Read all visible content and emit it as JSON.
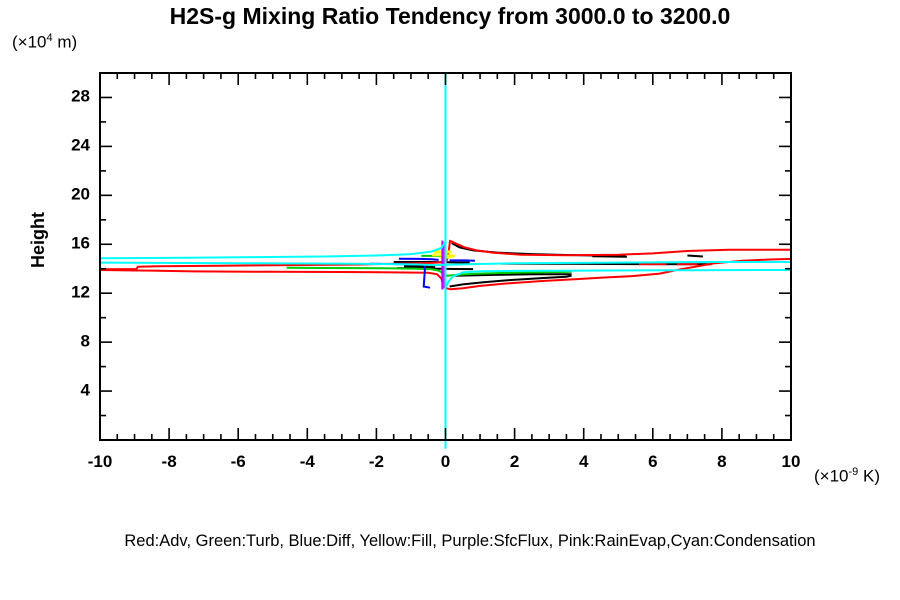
{
  "title": "H2S-g Mixing Ratio Tendency from 3000.0 to 3200.0",
  "y_axis": {
    "label": "Height",
    "unit_prefix": "(×10",
    "unit_sup": "4",
    "unit_suffix": " m)",
    "range": [
      0,
      30
    ],
    "major_ticks": [
      4,
      8,
      12,
      16,
      20,
      24,
      28
    ],
    "minor_step": 2
  },
  "x_axis": {
    "unit_prefix": "(×10",
    "unit_sup": "-9",
    "unit_suffix": " K)",
    "range": [
      -10,
      10
    ],
    "major_ticks": [
      -10,
      -8,
      -6,
      -4,
      -2,
      0,
      2,
      4,
      6,
      8,
      10
    ],
    "minor_step": 0.5
  },
  "legend": "Red:Adv, Green:Turb, Blue:Diff, Yellow:Fill, Purple:SfcFlux, Pink:RainEvap,Cyan:Condensation",
  "colors": {
    "frame": "#000000",
    "red": "#ff0000",
    "green": "#00cc00",
    "blue": "#0000ff",
    "yellow": "#ffff00",
    "purple": "#aa00ff",
    "pink": "#ff00ff",
    "cyan": "#00ffff",
    "black": "#000000"
  },
  "chart_data": {
    "type": "line",
    "title": "H2S-g Mixing Ratio Tendency from 3000.0 to 3200.0",
    "xlabel": "(×10^-9 K)",
    "ylabel": "Height (×10^4 m)",
    "xlim": [
      -10,
      10
    ],
    "ylim": [
      0,
      30
    ],
    "grid": false,
    "legend_position": "bottom-text-line",
    "series": [
      {
        "name": "unlabeled-black",
        "color_key": "black",
        "width": 2,
        "segments": [
          [
            [
              0.18,
              16.1
            ],
            [
              0.4,
              15.75
            ],
            [
              0.8,
              15.5
            ],
            [
              1.5,
              15.32
            ],
            [
              2.5,
              15.2
            ],
            [
              3.5,
              15.12
            ],
            [
              4.3,
              15.08
            ],
            [
              5.2,
              15.0
            ]
          ],
          [
            [
              4.25,
              15.02
            ],
            [
              5.25,
              14.98
            ]
          ],
          [
            [
              7.0,
              15.08
            ],
            [
              7.45,
              15.0
            ]
          ],
          [
            [
              1.6,
              14.42
            ],
            [
              3.5,
              14.4
            ],
            [
              5.5,
              14.38
            ],
            [
              7.7,
              14.36
            ]
          ],
          [
            [
              -1.5,
              14.55
            ],
            [
              -0.5,
              14.55
            ],
            [
              0.3,
              14.52
            ],
            [
              0.7,
              14.5
            ]
          ],
          [
            [
              -1.2,
              14.25
            ],
            [
              -0.3,
              14.22
            ]
          ],
          [
            [
              -1.2,
              14.15
            ],
            [
              -0.3,
              14.12
            ]
          ],
          [
            [
              -1.4,
              14.05
            ],
            [
              -0.6,
              14.03
            ],
            [
              -0.2,
              14.0
            ],
            [
              0.3,
              13.98
            ],
            [
              0.8,
              13.97
            ]
          ],
          [
            [
              0.12,
              12.55
            ],
            [
              0.5,
              12.72
            ],
            [
              1.1,
              12.9
            ],
            [
              1.9,
              13.08
            ],
            [
              2.9,
              13.25
            ],
            [
              3.5,
              13.35
            ],
            [
              3.62,
              13.42
            ],
            [
              3.62,
              13.55
            ],
            [
              2.6,
              13.55
            ],
            [
              1.4,
              13.5
            ],
            [
              0.6,
              13.45
            ],
            [
              0.2,
              13.42
            ]
          ]
        ]
      },
      {
        "name": "Adv",
        "color_key": "red",
        "width": 2,
        "segments": [
          [
            [
              10,
              15.55
            ],
            [
              8.2,
              15.55
            ],
            [
              7,
              15.45
            ],
            [
              6,
              15.25
            ],
            [
              5,
              15.15
            ],
            [
              3.5,
              15.1
            ],
            [
              2.2,
              15.15
            ],
            [
              1.4,
              15.3
            ],
            [
              0.9,
              15.5
            ],
            [
              0.55,
              15.75
            ],
            [
              0.35,
              16.0
            ],
            [
              0.2,
              16.2
            ],
            [
              0.13,
              16.27
            ],
            [
              0.1,
              15.6
            ],
            [
              0.06,
              14.9
            ],
            [
              0.02,
              14.55
            ],
            [
              -0.4,
              14.48
            ],
            [
              -1.2,
              14.42
            ],
            [
              -2.5,
              14.35
            ],
            [
              -4.5,
              14.3
            ],
            [
              -6.5,
              14.25
            ],
            [
              -8.3,
              14.2
            ],
            [
              -8.9,
              14.17
            ],
            [
              -8.95,
              13.97
            ],
            [
              -10,
              13.95
            ]
          ],
          [
            [
              -10,
              13.9
            ],
            [
              -8.5,
              13.85
            ],
            [
              -7.3,
              13.78
            ],
            [
              -5,
              13.75
            ],
            [
              -3,
              13.73
            ],
            [
              -1.5,
              13.7
            ],
            [
              -0.5,
              13.67
            ],
            [
              -0.25,
              13.55
            ],
            [
              -0.12,
              13.2
            ],
            [
              -0.05,
              12.7
            ],
            [
              0.02,
              12.4
            ],
            [
              0.15,
              12.32
            ],
            [
              0.5,
              12.4
            ],
            [
              1,
              12.6
            ],
            [
              1.8,
              12.8
            ],
            [
              2.8,
              13.0
            ],
            [
              3.8,
              13.15
            ],
            [
              4.6,
              13.28
            ],
            [
              5.4,
              13.4
            ],
            [
              6.2,
              13.6
            ],
            [
              6.8,
              13.95
            ],
            [
              7.3,
              14.2
            ],
            [
              7.8,
              14.45
            ],
            [
              8.6,
              14.65
            ],
            [
              9.3,
              14.75
            ],
            [
              10,
              14.8
            ]
          ],
          [
            [
              5.6,
              14.38
            ],
            [
              6.4,
              14.38
            ]
          ],
          [
            [
              6.7,
              14.36
            ],
            [
              7.3,
              14.36
            ]
          ]
        ]
      },
      {
        "name": "Turb",
        "color_key": "green",
        "width": 2,
        "segments": [
          [
            [
              -4.6,
              14.08
            ],
            [
              -3.5,
              14.06
            ],
            [
              -2.5,
              14.05
            ],
            [
              -1.5,
              14.03
            ],
            [
              -0.8,
              14.0
            ],
            [
              -0.4,
              13.95
            ],
            [
              -0.2,
              13.85
            ],
            [
              -0.05,
              13.6
            ],
            [
              0.05,
              13.42
            ],
            [
              0.3,
              13.5
            ],
            [
              0.8,
              13.58
            ],
            [
              1.6,
              13.65
            ],
            [
              2.6,
              13.7
            ],
            [
              3.3,
              13.73
            ],
            [
              3.65,
              13.75
            ]
          ],
          [
            [
              -0.7,
              15.05
            ],
            [
              -0.3,
              15.05
            ],
            [
              0,
              15.0
            ],
            [
              0.25,
              15.03
            ]
          ]
        ]
      },
      {
        "name": "Diff",
        "color_key": "blue",
        "width": 2,
        "segments": [
          [
            [
              -1.35,
              14.82
            ],
            [
              -0.75,
              14.8
            ],
            [
              -0.4,
              14.78
            ],
            [
              -0.2,
              14.72
            ]
          ],
          [
            [
              0.12,
              14.68
            ],
            [
              0.55,
              14.68
            ],
            [
              0.85,
              14.65
            ]
          ],
          [
            [
              -2.2,
              14.4
            ],
            [
              -1.4,
              14.38
            ],
            [
              -0.75,
              14.35
            ]
          ],
          [
            [
              -0.6,
              14.42
            ],
            [
              -0.6,
              13.8
            ],
            [
              -0.62,
              13.0
            ],
            [
              -0.63,
              12.55
            ],
            [
              -0.45,
              12.45
            ]
          ],
          [
            [
              -0.08,
              13.95
            ],
            [
              -0.08,
              13.3
            ],
            [
              -0.1,
              12.9
            ]
          ]
        ]
      },
      {
        "name": "Fill",
        "color_key": "yellow",
        "width": 2,
        "segments": [
          [
            [
              -0.32,
              15.42
            ],
            [
              0.12,
              15.42
            ],
            [
              0.18,
              15.35
            ],
            [
              -0.3,
              15.3
            ],
            [
              -0.35,
              15.1
            ],
            [
              0.28,
              15.08
            ],
            [
              0.1,
              14.92
            ],
            [
              -0.15,
              14.9
            ]
          ]
        ]
      },
      {
        "name": "SfcFlux",
        "color_key": "purple",
        "width": 2,
        "segments": [
          [
            [
              -0.09,
              16.3
            ],
            [
              -0.09,
              12.3
            ]
          ]
        ]
      },
      {
        "name": "RainEvap",
        "color_key": "pink",
        "width": 2,
        "segments": [
          [
            [
              -0.05,
              16.15
            ],
            [
              -0.05,
              12.4
            ]
          ]
        ]
      },
      {
        "name": "Condensation",
        "color_key": "cyan",
        "width": 2,
        "segments": [
          [
            [
              0,
              30
            ],
            [
              0,
              -0.7
            ]
          ],
          [
            [
              0,
              16.2
            ],
            [
              -0.12,
              15.7
            ],
            [
              -0.4,
              15.4
            ],
            [
              -1,
              15.2
            ],
            [
              -2,
              15.08
            ],
            [
              -3.5,
              15.0
            ],
            [
              -5.5,
              14.95
            ],
            [
              -7.5,
              14.9
            ],
            [
              -10,
              14.85
            ]
          ],
          [
            [
              -10,
              14.5
            ],
            [
              -6,
              14.45
            ],
            [
              -2.5,
              14.4
            ],
            [
              -0.8,
              14.35
            ],
            [
              -0.3,
              14.3
            ],
            [
              0.3,
              14.35
            ],
            [
              2,
              14.45
            ],
            [
              5,
              14.5
            ],
            [
              7.5,
              14.55
            ],
            [
              10,
              14.55
            ]
          ],
          [
            [
              10,
              13.9
            ],
            [
              7,
              13.88
            ],
            [
              4,
              13.85
            ],
            [
              2,
              13.82
            ],
            [
              1,
              13.8
            ],
            [
              0.5,
              13.7
            ],
            [
              0.2,
              13.35
            ],
            [
              0.08,
              12.9
            ],
            [
              0.02,
              12.55
            ]
          ]
        ]
      }
    ]
  }
}
